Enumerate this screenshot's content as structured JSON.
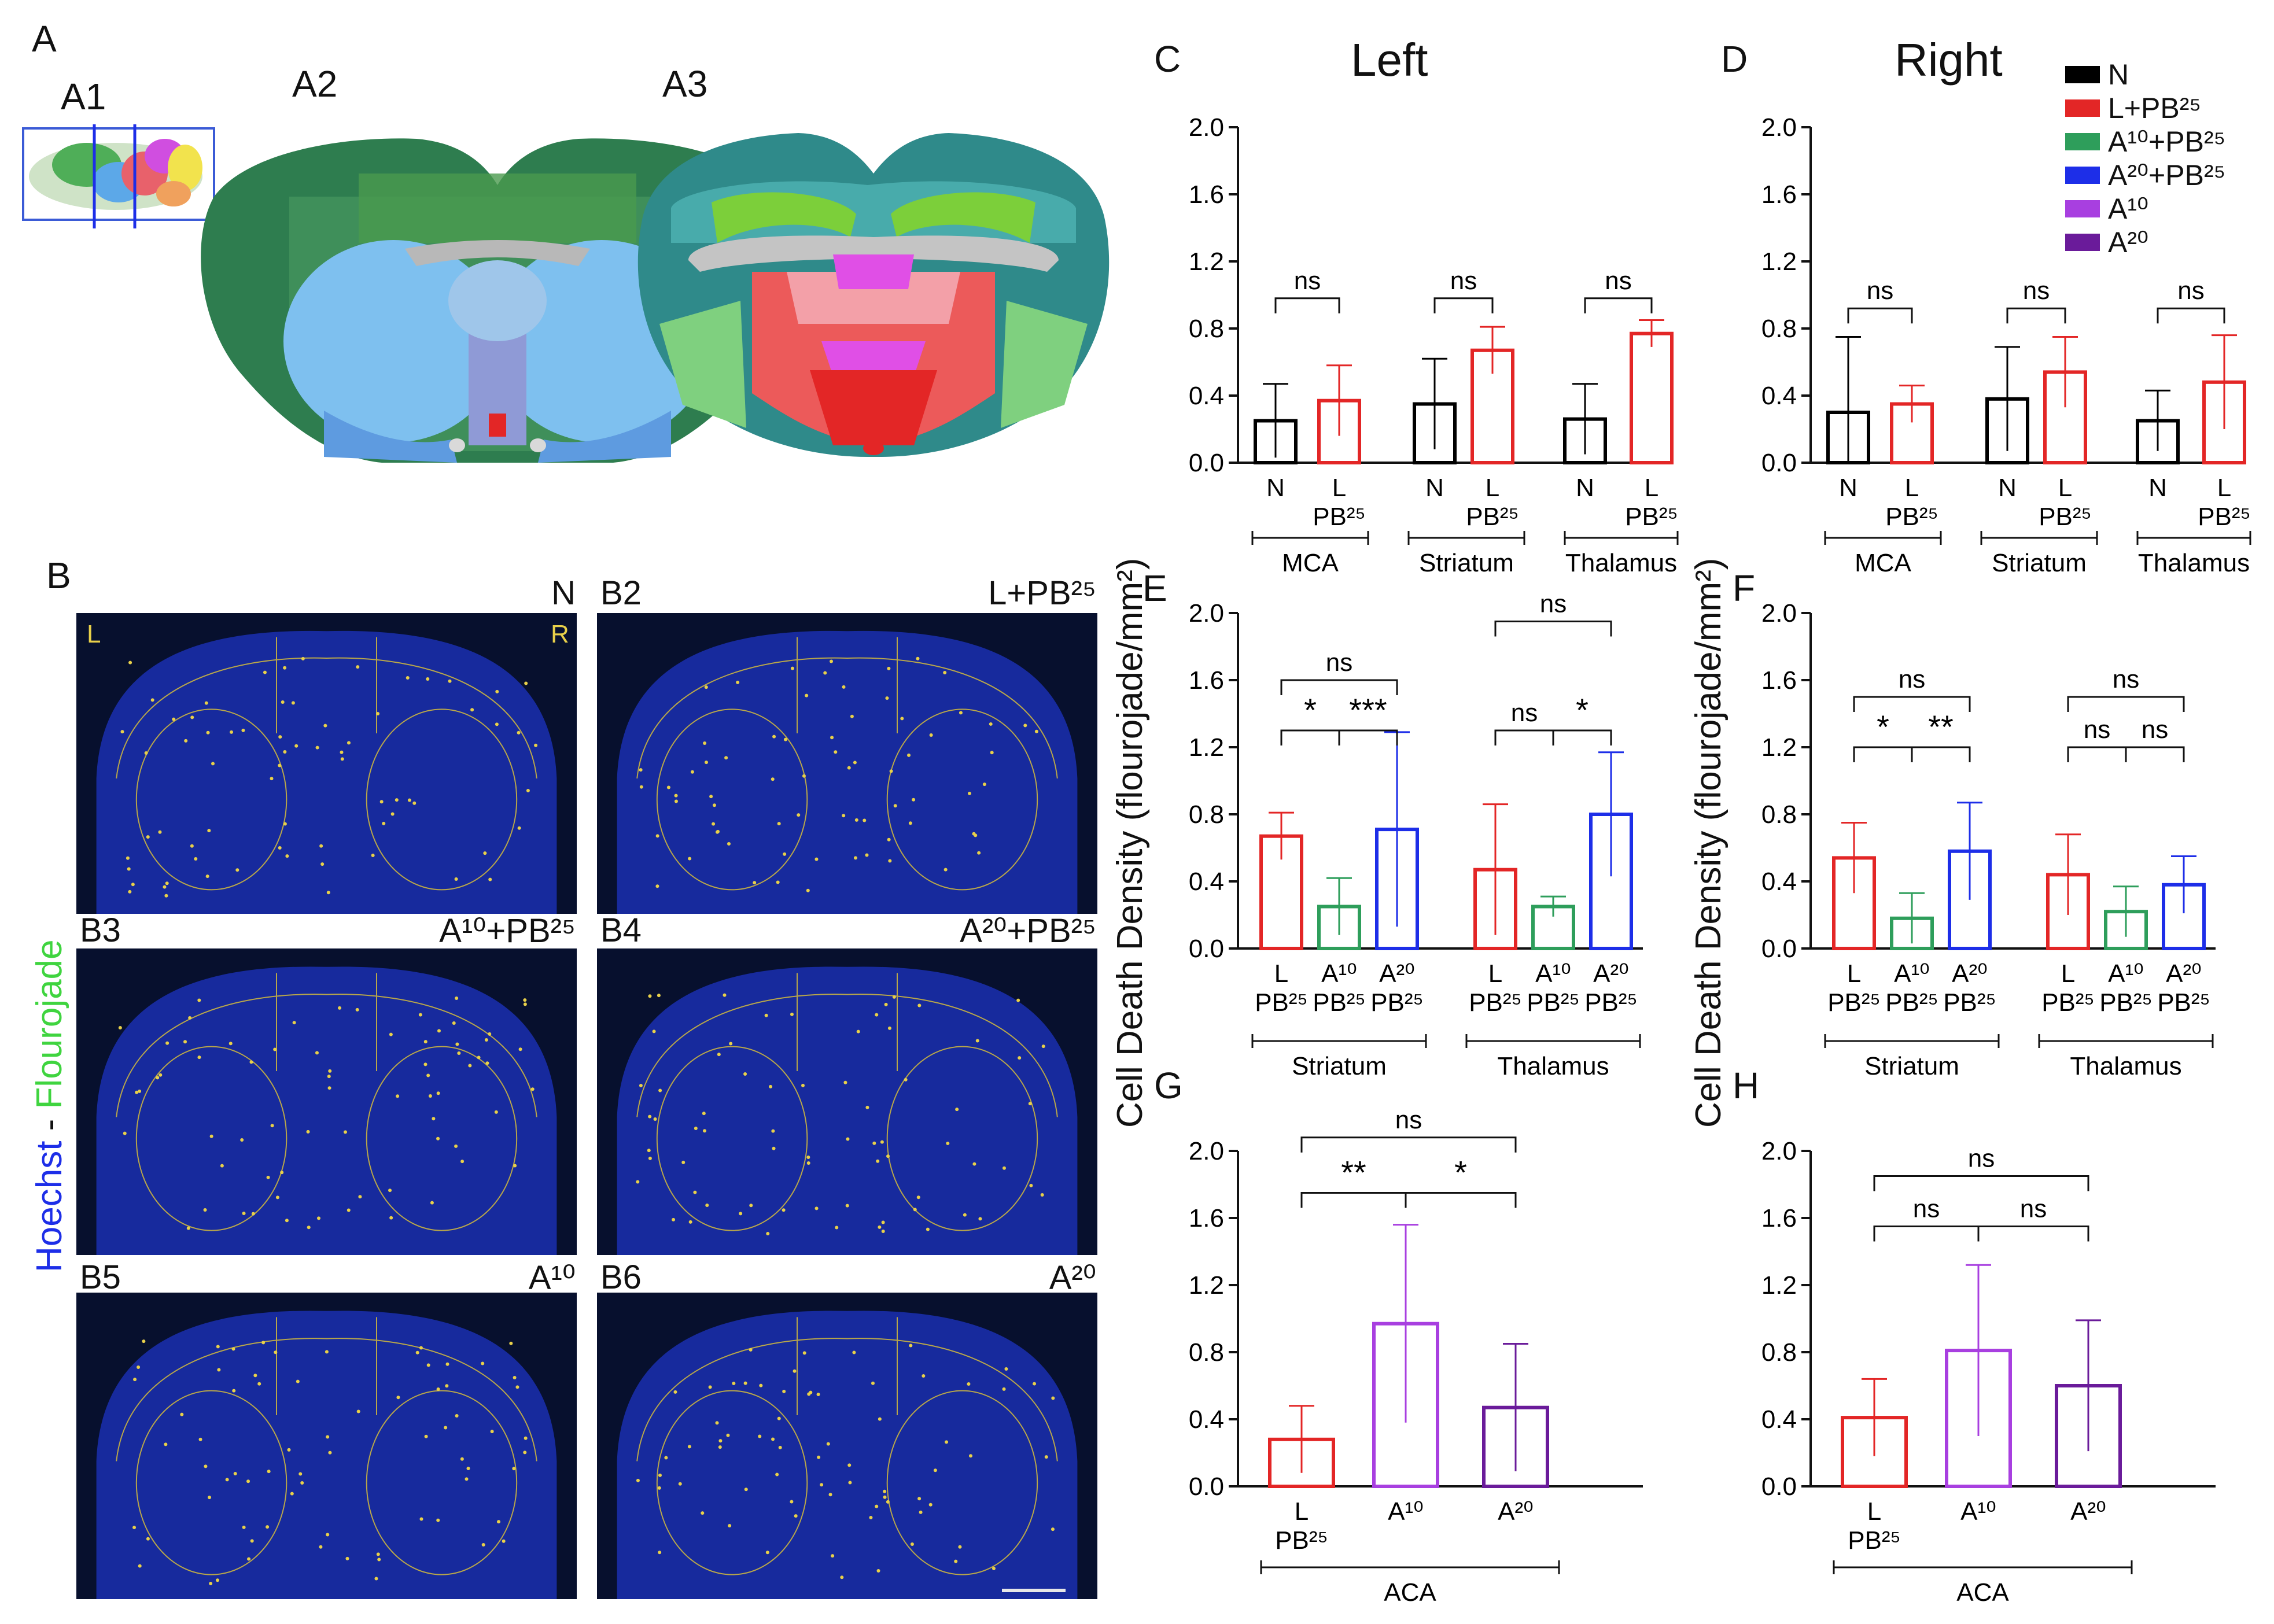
{
  "panel_labels": {
    "A": "A",
    "A1": "A1",
    "A2": "A2",
    "A3": "A3",
    "B": "B",
    "C": "C",
    "D": "D",
    "E": "E",
    "F": "F",
    "G": "G",
    "H": "H"
  },
  "side_titles": {
    "left": "Left",
    "right": "Right"
  },
  "y_axis_label": "Cell Death Density (flourojade/mm²)",
  "stain_label": {
    "hoechst": "Hoechst",
    "dash": " - ",
    "flourojade": "Flourojade"
  },
  "legend": [
    {
      "label": "N",
      "color": "#000000"
    },
    {
      "label": "L+PB²⁵",
      "color": "#e32626"
    },
    {
      "label": "A¹⁰+PB²⁵",
      "color": "#2e9e5b"
    },
    {
      "label": "A²⁰+PB²⁵",
      "color": "#1d2ee8"
    },
    {
      "label": "A¹⁰",
      "color": "#a83fe0"
    },
    {
      "label": "A²⁰",
      "color": "#6a1b9a"
    }
  ],
  "images": [
    {
      "id": "B1",
      "tag": "N",
      "side_l": "L",
      "side_r": "R"
    },
    {
      "id": "B2",
      "tag": "L+PB²⁵"
    },
    {
      "id": "B3",
      "tag": "A¹⁰+PB²⁵"
    },
    {
      "id": "B4",
      "tag": "A²⁰+PB²⁵"
    },
    {
      "id": "B5",
      "tag": "A¹⁰"
    },
    {
      "id": "B6",
      "tag": "A²⁰"
    }
  ],
  "chart_data": [
    {
      "id": "C",
      "type": "bar",
      "ylim": [
        0,
        2.0
      ],
      "yticks": [
        "0.0",
        "0.4",
        "0.8",
        "1.2",
        "1.6",
        "2.0"
      ],
      "bars": [
        {
          "label": "N",
          "value": 0.25,
          "err": 0.22,
          "color": "#000000"
        },
        {
          "label": "L PB²⁵",
          "value": 0.37,
          "err": 0.21,
          "color": "#e32626"
        },
        {
          "label": "N",
          "value": 0.35,
          "err": 0.27,
          "color": "#000000"
        },
        {
          "label": "L PB²⁵",
          "value": 0.67,
          "err": 0.14,
          "color": "#e32626"
        },
        {
          "label": "N",
          "value": 0.26,
          "err": 0.21,
          "color": "#000000"
        },
        {
          "label": "L PB²⁵",
          "value": 0.77,
          "err": 0.08,
          "color": "#e32626"
        }
      ],
      "groups": [
        "MCA",
        "Striatum",
        "Thalamus"
      ],
      "sig": [
        "ns",
        "ns",
        "ns"
      ]
    },
    {
      "id": "D",
      "type": "bar",
      "ylim": [
        0,
        2.0
      ],
      "yticks": [
        "0.0",
        "0.4",
        "0.8",
        "1.2",
        "1.6",
        "2.0"
      ],
      "bars": [
        {
          "label": "N",
          "value": 0.3,
          "err": 0.45,
          "color": "#000000"
        },
        {
          "label": "L PB²⁵",
          "value": 0.35,
          "err": 0.11,
          "color": "#e32626"
        },
        {
          "label": "N",
          "value": 0.38,
          "err": 0.31,
          "color": "#000000"
        },
        {
          "label": "L PB²⁵",
          "value": 0.54,
          "err": 0.21,
          "color": "#e32626"
        },
        {
          "label": "N",
          "value": 0.25,
          "err": 0.18,
          "color": "#000000"
        },
        {
          "label": "L PB²⁵",
          "value": 0.48,
          "err": 0.28,
          "color": "#e32626"
        }
      ],
      "groups": [
        "MCA",
        "Striatum",
        "Thalamus"
      ],
      "sig": [
        "ns",
        "ns",
        "ns"
      ]
    },
    {
      "id": "E",
      "type": "bar",
      "ylim": [
        0,
        2.0
      ],
      "yticks": [
        "0.0",
        "0.4",
        "0.8",
        "1.2",
        "1.6",
        "2.0"
      ],
      "bars": [
        {
          "label": "L PB²⁵",
          "value": 0.67,
          "err": 0.14,
          "color": "#e32626"
        },
        {
          "label": "A¹⁰ PB²⁵",
          "value": 0.25,
          "err": 0.17,
          "color": "#2e9e5b"
        },
        {
          "label": "A²⁰ PB²⁵",
          "value": 0.71,
          "err": 0.58,
          "color": "#1d2ee8"
        },
        {
          "label": "L PB²⁵",
          "value": 0.47,
          "err": 0.39,
          "color": "#e32626"
        },
        {
          "label": "A¹⁰ PB²⁵",
          "value": 0.25,
          "err": 0.06,
          "color": "#2e9e5b"
        },
        {
          "label": "A²⁰ PB²⁵",
          "value": 0.8,
          "err": 0.37,
          "color": "#1d2ee8"
        }
      ],
      "groups": [
        "Striatum",
        "Thalamus"
      ],
      "sig": [
        "*",
        "***",
        "ns",
        "ns",
        "*",
        "ns"
      ]
    },
    {
      "id": "F",
      "type": "bar",
      "ylim": [
        0,
        2.0
      ],
      "yticks": [
        "0.0",
        "0.4",
        "0.8",
        "1.2",
        "1.6",
        "2.0"
      ],
      "bars": [
        {
          "label": "L PB²⁵",
          "value": 0.54,
          "err": 0.21,
          "color": "#e32626"
        },
        {
          "label": "A¹⁰ PB²⁵",
          "value": 0.18,
          "err": 0.15,
          "color": "#2e9e5b"
        },
        {
          "label": "A²⁰ PB²⁵",
          "value": 0.58,
          "err": 0.29,
          "color": "#1d2ee8"
        },
        {
          "label": "L PB²⁵",
          "value": 0.44,
          "err": 0.24,
          "color": "#e32626"
        },
        {
          "label": "A¹⁰ PB²⁵",
          "value": 0.22,
          "err": 0.15,
          "color": "#2e9e5b"
        },
        {
          "label": "A²⁰ PB²⁵",
          "value": 0.38,
          "err": 0.17,
          "color": "#1d2ee8"
        }
      ],
      "groups": [
        "Striatum",
        "Thalamus"
      ],
      "sig": [
        "*",
        "**",
        "ns",
        "ns",
        "ns",
        "ns"
      ]
    },
    {
      "id": "G",
      "type": "bar",
      "ylim": [
        0,
        2.0
      ],
      "yticks": [
        "0.0",
        "0.4",
        "0.8",
        "1.2",
        "1.6",
        "2.0"
      ],
      "bars": [
        {
          "label": "L PB²⁵",
          "value": 0.28,
          "err": 0.2,
          "color": "#e32626"
        },
        {
          "label": "A¹⁰",
          "value": 0.97,
          "err": 0.59,
          "color": "#a83fe0"
        },
        {
          "label": "A²⁰",
          "value": 0.47,
          "err": 0.38,
          "color": "#6a1b9a"
        }
      ],
      "groups": [
        "ACA"
      ],
      "sig": [
        "**",
        "*",
        "ns"
      ]
    },
    {
      "id": "H",
      "type": "bar",
      "ylim": [
        0,
        2.0
      ],
      "yticks": [
        "0.0",
        "0.4",
        "0.8",
        "1.2",
        "1.6",
        "2.0"
      ],
      "bars": [
        {
          "label": "L PB²⁵",
          "value": 0.41,
          "err": 0.23,
          "color": "#e32626"
        },
        {
          "label": "A¹⁰",
          "value": 0.81,
          "err": 0.51,
          "color": "#a83fe0"
        },
        {
          "label": "A²⁰",
          "value": 0.6,
          "err": 0.39,
          "color": "#6a1b9a"
        }
      ],
      "groups": [
        "ACA"
      ],
      "sig": [
        "ns",
        "ns",
        "ns"
      ]
    }
  ]
}
